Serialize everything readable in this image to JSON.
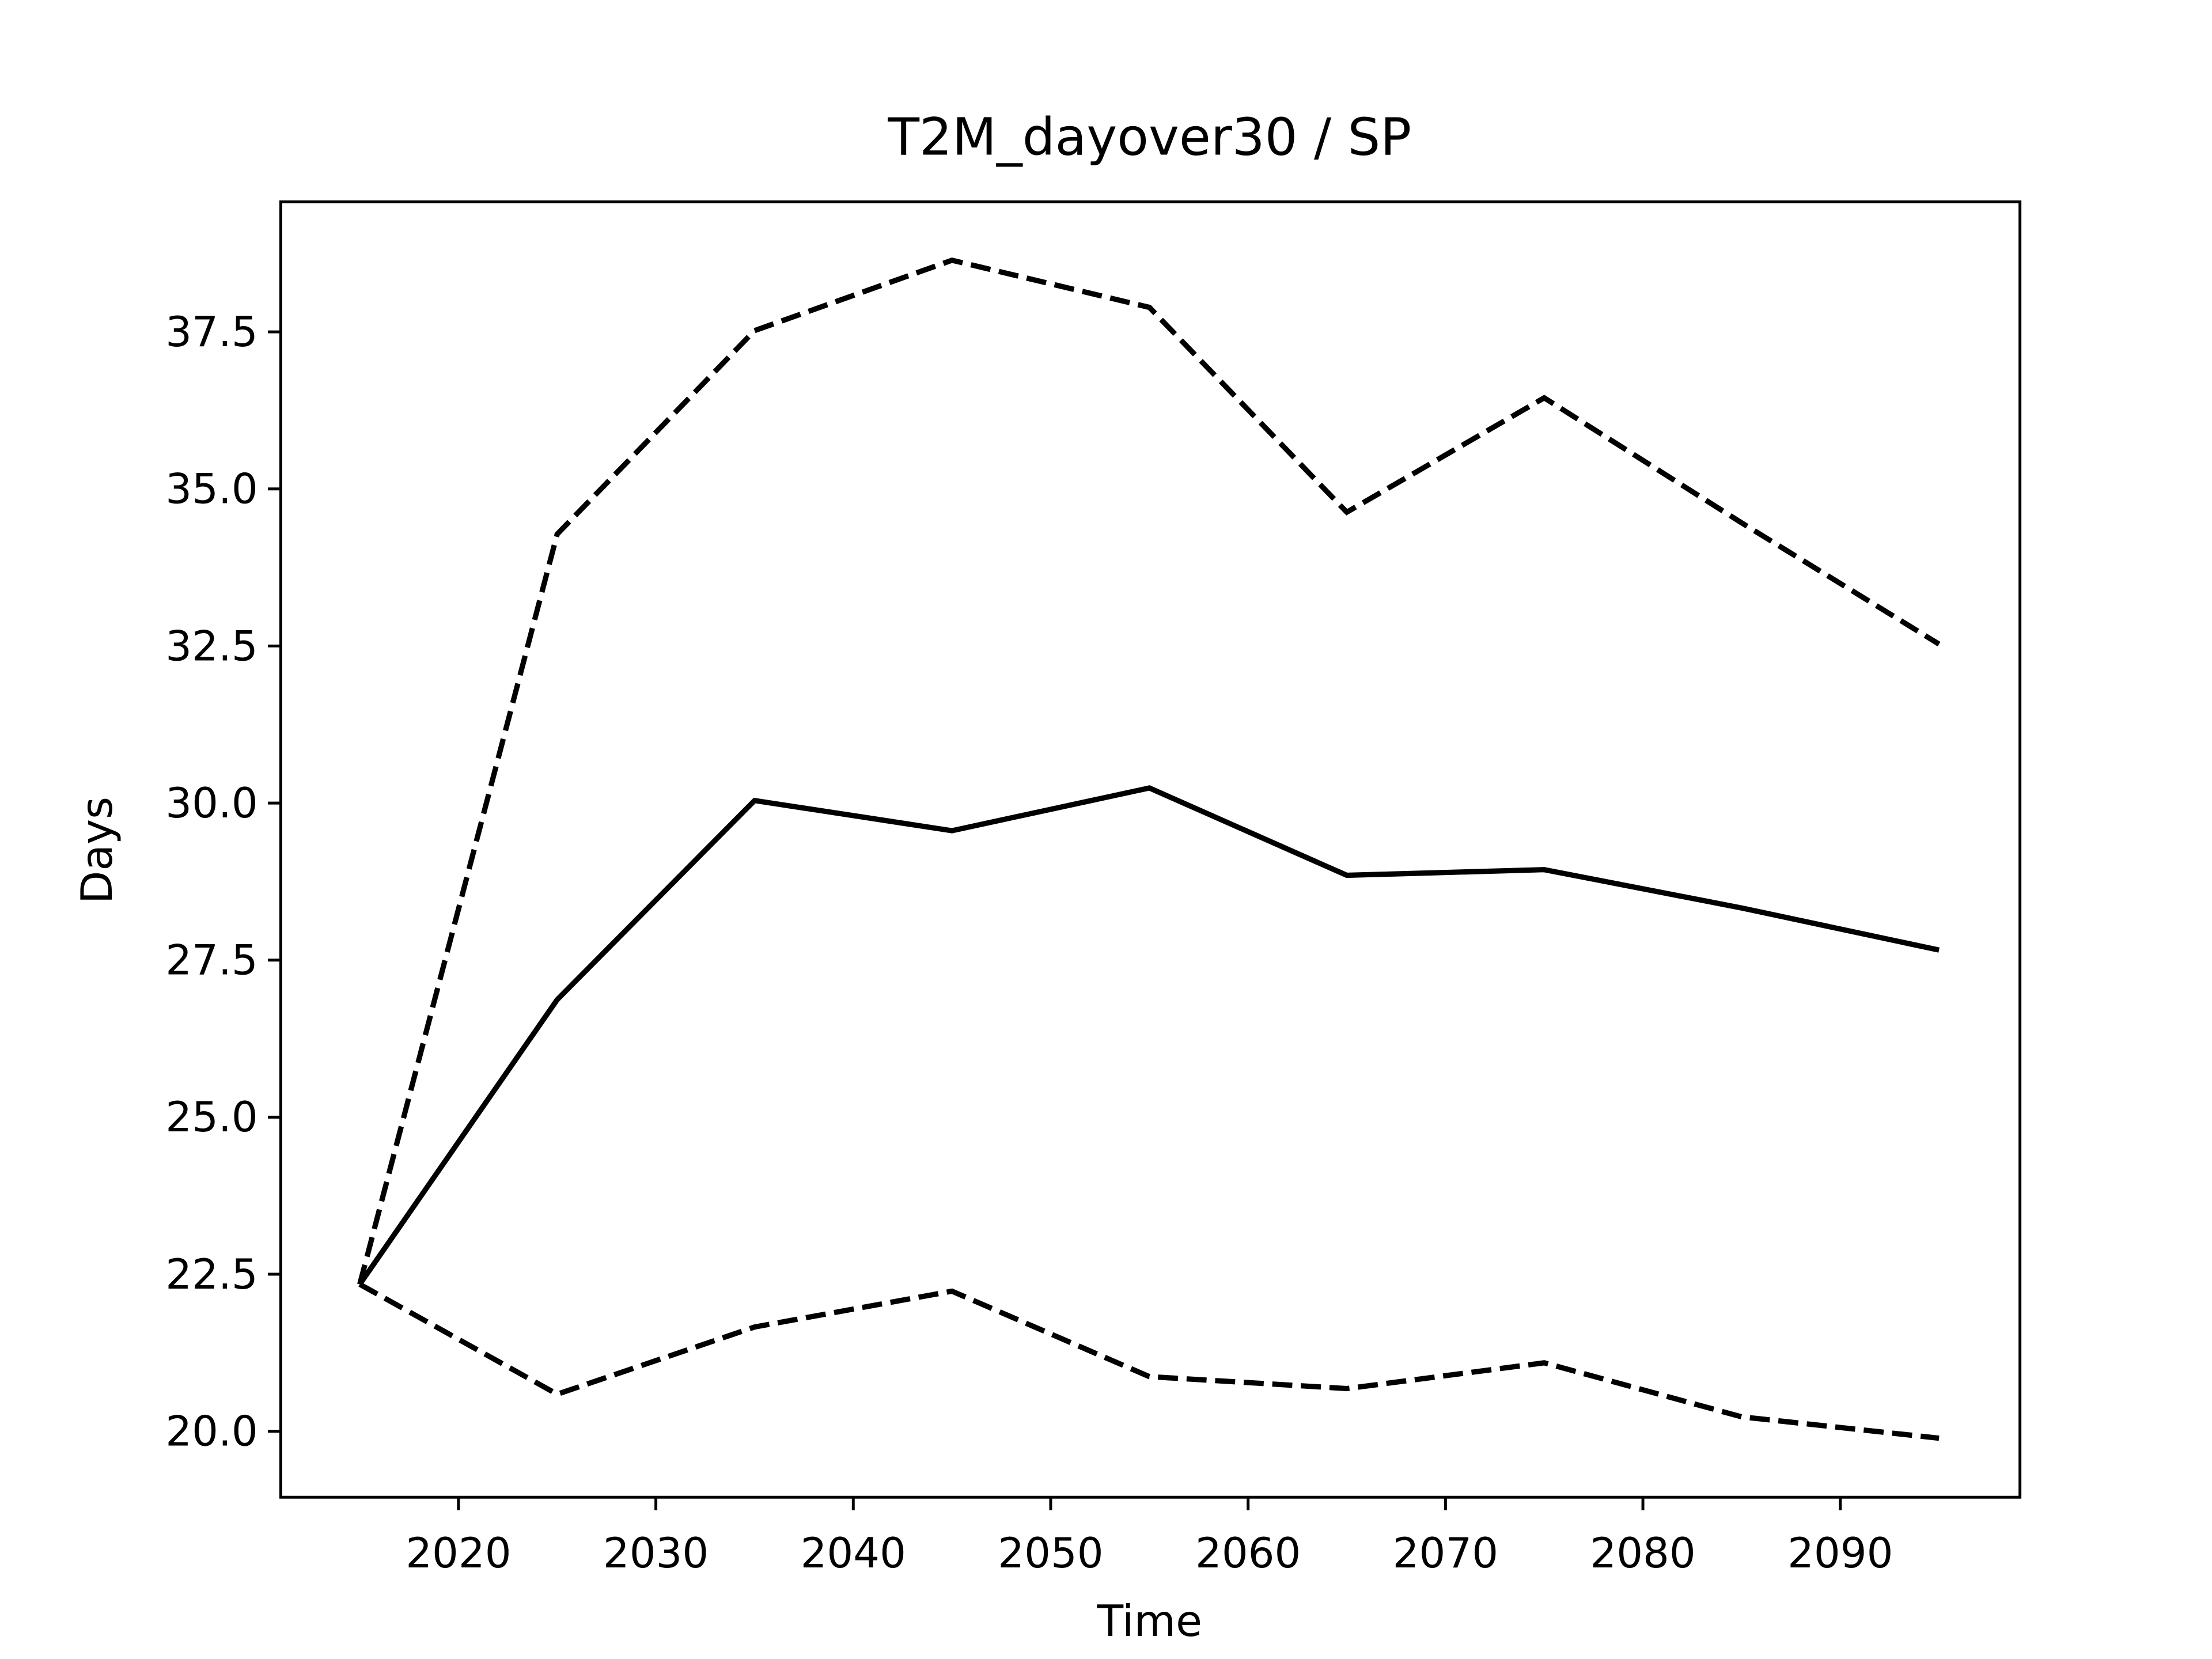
{
  "chart_data": {
    "type": "line",
    "title": "T2M_dayover30 / SP",
    "xlabel": "Time",
    "ylabel": "Days",
    "x": [
      2015,
      2025,
      2035,
      2045,
      2055,
      2065,
      2075,
      2085,
      2095
    ],
    "series": [
      {
        "color": "#000000",
        "linestyle": "solid",
        "values": [
          22.34,
          26.87,
          30.04,
          29.56,
          30.24,
          28.85,
          28.94,
          28.33,
          27.66
        ]
      },
      {
        "color": "#000000",
        "linestyle": "dashed",
        "values": [
          22.34,
          34.28,
          37.52,
          38.64,
          37.89,
          34.63,
          36.45,
          34.46,
          32.53
        ]
      },
      {
        "color": "#000000",
        "linestyle": "dashed",
        "values": [
          22.34,
          20.59,
          21.66,
          22.23,
          20.87,
          20.68,
          21.09,
          20.23,
          19.89
        ]
      }
    ],
    "xlim": [
      2011,
      2099.1
    ],
    "ylim": [
      18.95,
      39.57
    ],
    "xticks": [
      2020,
      2030,
      2040,
      2050,
      2060,
      2070,
      2080,
      2090
    ],
    "yticks": [
      {
        "value": 20,
        "label": "20.0"
      },
      22.5,
      {
        "value": 25,
        "label": "25.0"
      },
      27.5,
      {
        "value": 30,
        "label": "30.0"
      },
      32.5,
      {
        "value": 35,
        "label": "35.0"
      },
      37.5
    ],
    "grid": false
  }
}
